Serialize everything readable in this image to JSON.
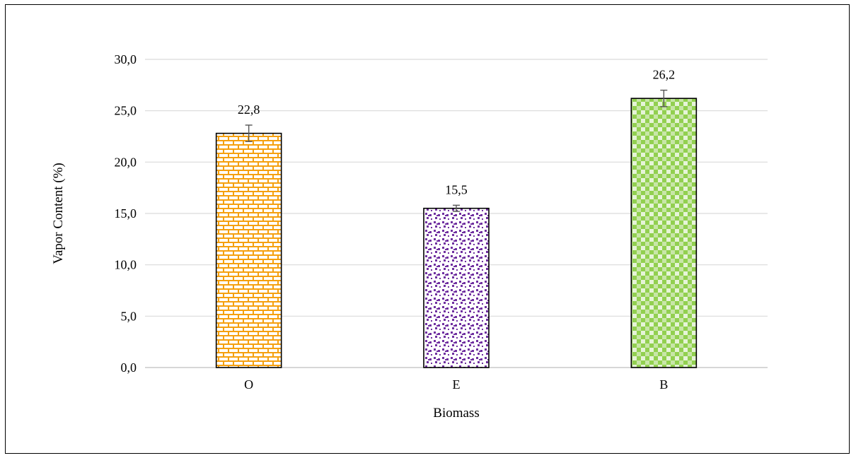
{
  "chart_data": {
    "type": "bar",
    "categories": [
      "O",
      "E",
      "B"
    ],
    "values": [
      22.8,
      15.5,
      26.2
    ],
    "data_labels": [
      "22,8",
      "15,5",
      "26,2"
    ],
    "error": [
      0.8,
      0.3,
      0.8
    ],
    "title": "",
    "xlabel": "Biomass",
    "ylabel": "Vapor  Content  (%)",
    "ylim": [
      0,
      30
    ],
    "yticks": [
      0,
      5,
      10,
      15,
      20,
      25,
      30
    ],
    "ytick_labels": [
      "0,0",
      "5,0",
      "10,0",
      "15,0",
      "20,0",
      "25,0",
      "30,0"
    ],
    "grid": true,
    "legend": "none",
    "colors": [
      "#f5a00f",
      "#7030a0",
      "#92d050"
    ],
    "patterns": [
      "brick",
      "confetti",
      "checker"
    ]
  }
}
